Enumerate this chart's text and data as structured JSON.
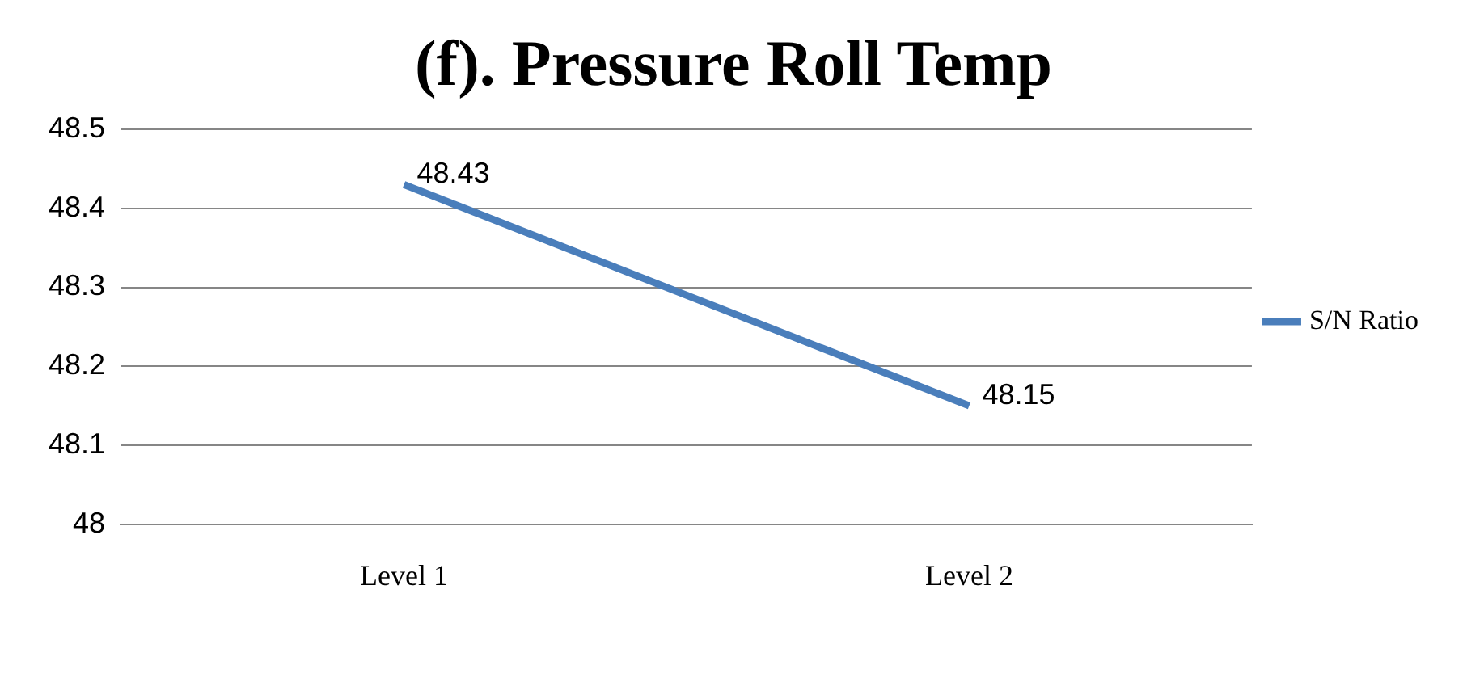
{
  "chart_data": {
    "type": "line",
    "title": "(f). Pressure Roll Temp",
    "categories": [
      "Level 1",
      "Level 2"
    ],
    "series": [
      {
        "name": "S/N Ratio",
        "color": "#4a7ebb",
        "values": [
          48.43,
          48.15
        ]
      }
    ],
    "ylim": [
      48,
      48.5
    ],
    "yticks": [
      48,
      48.1,
      48.2,
      48.3,
      48.4,
      48.5
    ],
    "grid": "y",
    "legend": "right",
    "marker": "none",
    "line_style": "solid",
    "data_labels": true
  }
}
